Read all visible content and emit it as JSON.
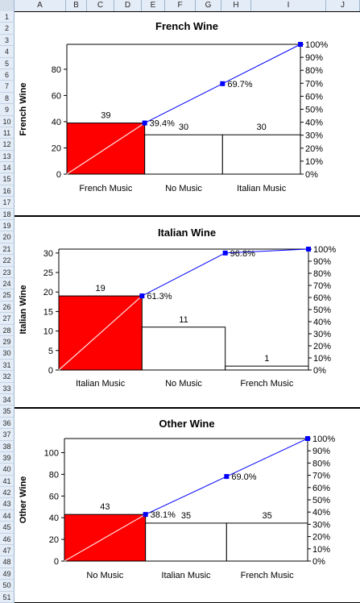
{
  "spreadsheet": {
    "columns": [
      "A",
      "B",
      "C",
      "D",
      "E",
      "F",
      "G",
      "H",
      "I",
      "J"
    ],
    "rows": [
      1,
      2,
      3,
      4,
      5,
      6,
      7,
      8,
      9,
      10,
      11,
      12,
      13,
      14,
      15,
      16,
      17,
      18,
      19,
      20,
      21,
      22,
      23,
      24,
      25,
      26,
      27,
      28,
      29,
      30,
      31,
      32,
      33,
      34,
      35,
      36,
      37,
      38,
      39,
      40,
      41,
      42,
      43,
      44,
      45,
      46,
      47,
      48,
      49,
      50,
      51
    ]
  },
  "chart_data": [
    {
      "type": "bar",
      "title": "French Wine",
      "ylabel": "French Wine",
      "categories": [
        "French Music",
        "No Music",
        "Italian Music"
      ],
      "values": [
        39,
        30,
        30
      ],
      "value_labels": [
        "39",
        "30",
        "30"
      ],
      "ylim": [
        0,
        99
      ],
      "yticks": [
        0,
        20,
        40,
        60,
        80
      ],
      "y2ticks": [
        "0%",
        "10%",
        "20%",
        "30%",
        "40%",
        "50%",
        "60%",
        "70%",
        "80%",
        "90%",
        "100%"
      ],
      "cumulative_labels": [
        "39.4%",
        "69.7%"
      ],
      "bar_colors": [
        "#ff0000",
        "#ffffff",
        "#ffffff"
      ],
      "line_color": "#0000ff",
      "grid": false
    },
    {
      "type": "bar",
      "title": "Italian Wine",
      "ylabel": "Italian Wine",
      "categories": [
        "Italian Music",
        "No Music",
        "French Music"
      ],
      "values": [
        19,
        11,
        1
      ],
      "value_labels": [
        "19",
        "11",
        "1"
      ],
      "ylim": [
        0,
        31
      ],
      "yticks": [
        0,
        5,
        10,
        15,
        20,
        25,
        30
      ],
      "y2ticks": [
        "0%",
        "10%",
        "20%",
        "30%",
        "40%",
        "50%",
        "60%",
        "70%",
        "80%",
        "90%",
        "100%"
      ],
      "cumulative_labels": [
        "61.3%",
        "96.8%"
      ],
      "bar_colors": [
        "#ff0000",
        "#ffffff",
        "#ffffff"
      ],
      "line_color": "#0000ff",
      "grid": false
    },
    {
      "type": "bar",
      "title": "Other Wine",
      "ylabel": "Other Wine",
      "categories": [
        "No Music",
        "Italian Music",
        "French Music"
      ],
      "values": [
        43,
        35,
        35
      ],
      "value_labels": [
        "43",
        "35",
        "35"
      ],
      "ylim": [
        0,
        113
      ],
      "yticks": [
        0,
        20,
        40,
        60,
        80,
        100
      ],
      "y2ticks": [
        "0%",
        "10%",
        "20%",
        "30%",
        "40%",
        "50%",
        "60%",
        "70%",
        "80%",
        "90%",
        "100%"
      ],
      "cumulative_labels": [
        "38.1%",
        "69.0%"
      ],
      "bar_colors": [
        "#ff0000",
        "#ffffff",
        "#ffffff"
      ],
      "line_color": "#0000ff",
      "grid": false
    }
  ]
}
